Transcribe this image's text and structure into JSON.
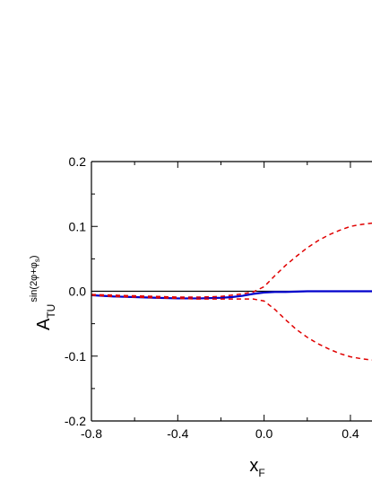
{
  "chart_data": {
    "type": "line",
    "xlabel": "x",
    "xlabel_sub": "F",
    "ylabel": "A",
    "ylabel_sub": "TU",
    "ylabel_sup": "sin(2φ+φ",
    "ylabel_sup_sub": "s",
    "ylabel_sup_end": ")",
    "xlim": [
      -0.8,
      0.5
    ],
    "ylim": [
      -0.2,
      0.2
    ],
    "x_ticks": [
      -0.8,
      -0.4,
      0.0,
      0.4
    ],
    "x_tick_labels": [
      "-0.8",
      "-0.4",
      "0.0",
      "0.4"
    ],
    "y_ticks": [
      -0.2,
      -0.1,
      0.0,
      0.1,
      0.2
    ],
    "y_tick_labels": [
      "-0.2",
      "-0.1",
      "0.0",
      "0.1",
      "0.2"
    ],
    "reference_line_y": 0.0,
    "series": [
      {
        "style": "solid",
        "color": "#0000cc",
        "x": [
          -0.8,
          -0.7,
          -0.6,
          -0.5,
          -0.4,
          -0.3,
          -0.2,
          -0.15,
          -0.1,
          -0.05,
          0.0,
          0.05,
          0.1,
          0.2,
          0.3,
          0.4,
          0.5
        ],
        "y": [
          -0.006,
          -0.008,
          -0.009,
          -0.01,
          -0.011,
          -0.011,
          -0.01,
          -0.009,
          -0.007,
          -0.004,
          -0.002,
          -0.001,
          -0.001,
          0.0,
          0.0,
          0.0,
          0.0
        ]
      },
      {
        "style": "dashed",
        "color": "#e00000",
        "x": [
          -0.8,
          -0.7,
          -0.6,
          -0.5,
          -0.4,
          -0.3,
          -0.2,
          -0.15,
          -0.1,
          -0.05,
          0.0,
          0.05,
          0.1,
          0.15,
          0.2,
          0.25,
          0.3,
          0.35,
          0.4,
          0.45,
          0.5
        ],
        "y": [
          -0.005,
          -0.006,
          -0.007,
          -0.008,
          -0.009,
          -0.009,
          -0.008,
          -0.006,
          -0.004,
          -0.001,
          0.007,
          0.024,
          0.04,
          0.054,
          0.067,
          0.078,
          0.087,
          0.094,
          0.1,
          0.103,
          0.105
        ]
      },
      {
        "style": "dashed",
        "color": "#e00000",
        "x": [
          -0.8,
          -0.7,
          -0.6,
          -0.5,
          -0.4,
          -0.3,
          -0.2,
          -0.15,
          -0.1,
          -0.05,
          0.0,
          0.05,
          0.1,
          0.15,
          0.2,
          0.25,
          0.3,
          0.35,
          0.4,
          0.45,
          0.5
        ],
        "y": [
          -0.006,
          -0.008,
          -0.009,
          -0.01,
          -0.011,
          -0.012,
          -0.012,
          -0.012,
          -0.012,
          -0.012,
          -0.015,
          -0.028,
          -0.044,
          -0.059,
          -0.071,
          -0.081,
          -0.089,
          -0.096,
          -0.101,
          -0.104,
          -0.106
        ]
      }
    ]
  }
}
